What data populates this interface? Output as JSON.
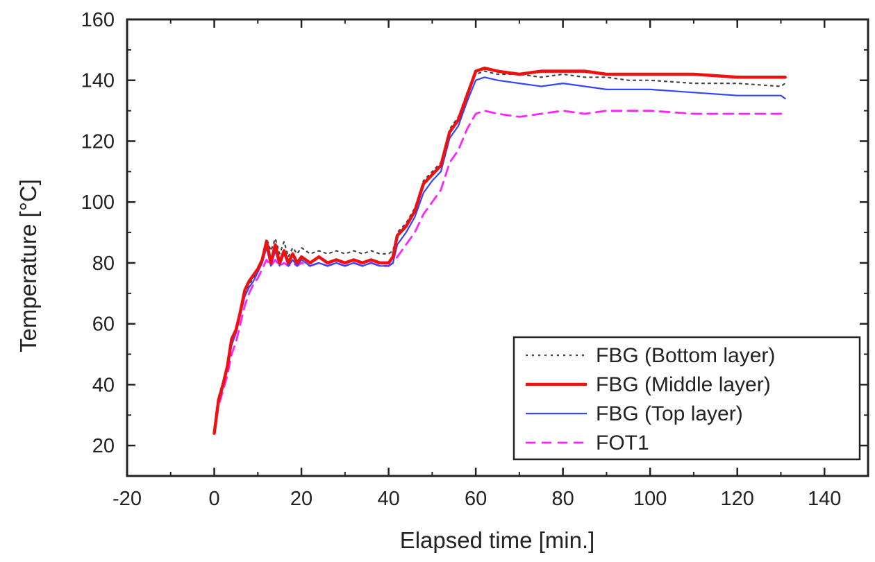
{
  "chart_data": {
    "type": "line",
    "title": "",
    "xlabel": "Elapsed time [min.]",
    "ylabel": "Temperature [°C]",
    "xlim": [
      -20,
      150
    ],
    "ylim": [
      10,
      160
    ],
    "x_ticks": [
      -20,
      0,
      20,
      40,
      60,
      80,
      100,
      120,
      140
    ],
    "y_ticks": [
      20,
      40,
      60,
      80,
      100,
      120,
      140,
      160
    ],
    "grid": false,
    "legend_position": "bottom-right",
    "series": [
      {
        "name": "FBG (Bottom layer)",
        "color": "#444444",
        "line_style": "dotted",
        "x": [
          0,
          1,
          2,
          3,
          4,
          5,
          6,
          7,
          8,
          9,
          10,
          11,
          12,
          13,
          14,
          15,
          16,
          17,
          18,
          19,
          20,
          22,
          24,
          26,
          28,
          30,
          32,
          34,
          36,
          38,
          40,
          41,
          42,
          44,
          46,
          48,
          50,
          52,
          54,
          56,
          58,
          60,
          62,
          65,
          70,
          75,
          80,
          85,
          90,
          95,
          100,
          110,
          120,
          130,
          131
        ],
        "y": [
          24,
          36,
          41,
          47,
          55,
          58,
          64,
          70,
          73,
          75,
          77,
          81,
          88,
          84,
          88,
          83,
          87,
          82,
          85,
          83,
          85,
          83,
          84,
          83,
          84,
          83,
          84,
          83,
          84,
          83,
          83,
          84,
          90,
          93,
          98,
          107,
          110,
          113,
          124,
          128,
          136,
          142,
          143,
          142,
          142,
          141,
          142,
          141,
          141,
          140,
          140,
          139,
          139,
          138,
          139
        ]
      },
      {
        "name": "FBG (Middle layer)",
        "color": "#ee1111",
        "line_style": "solid",
        "x": [
          0,
          1,
          2,
          3,
          4,
          5,
          6,
          7,
          8,
          9,
          10,
          11,
          12,
          13,
          14,
          15,
          16,
          17,
          18,
          19,
          20,
          22,
          24,
          26,
          28,
          30,
          32,
          34,
          36,
          38,
          40,
          41,
          42,
          44,
          46,
          48,
          50,
          52,
          54,
          56,
          58,
          60,
          62,
          65,
          70,
          75,
          80,
          85,
          90,
          95,
          100,
          110,
          120,
          130,
          131
        ],
        "y": [
          24,
          35,
          40,
          46,
          55,
          58,
          64,
          71,
          74,
          76,
          78,
          81,
          87,
          80,
          86,
          80,
          84,
          80,
          83,
          80,
          82,
          80,
          82,
          80,
          81,
          80,
          81,
          80,
          81,
          80,
          80,
          82,
          89,
          92,
          97,
          106,
          109,
          112,
          123,
          127,
          135,
          143,
          144,
          143,
          142,
          143,
          143,
          143,
          142,
          142,
          142,
          142,
          141,
          141,
          141
        ]
      },
      {
        "name": "FBG (Top layer)",
        "color": "#3344ff",
        "line_style": "solid",
        "x": [
          0,
          1,
          2,
          3,
          4,
          5,
          6,
          7,
          8,
          9,
          10,
          11,
          12,
          13,
          14,
          15,
          16,
          17,
          18,
          19,
          20,
          22,
          24,
          26,
          28,
          30,
          32,
          34,
          36,
          38,
          40,
          41,
          42,
          44,
          46,
          48,
          50,
          52,
          54,
          56,
          58,
          60,
          62,
          65,
          70,
          75,
          80,
          85,
          90,
          95,
          100,
          110,
          120,
          130,
          131
        ],
        "y": [
          24,
          34,
          39,
          45,
          53,
          57,
          63,
          69,
          72,
          74,
          77,
          80,
          85,
          79,
          84,
          79,
          83,
          79,
          81,
          79,
          81,
          79,
          80,
          79,
          80,
          79,
          80,
          79,
          80,
          79,
          79,
          80,
          86,
          90,
          95,
          103,
          107,
          110,
          121,
          125,
          133,
          140,
          141,
          140,
          139,
          138,
          139,
          138,
          137,
          137,
          137,
          136,
          135,
          135,
          134
        ]
      },
      {
        "name": "FOT1",
        "color": "#ff22ff",
        "line_style": "dashed",
        "x": [
          0,
          1,
          2,
          3,
          4,
          5,
          6,
          7,
          8,
          9,
          10,
          11,
          12,
          13,
          14,
          15,
          16,
          17,
          18,
          19,
          20,
          22,
          24,
          26,
          28,
          30,
          32,
          34,
          36,
          38,
          40,
          41,
          42,
          44,
          46,
          48,
          50,
          52,
          54,
          56,
          58,
          60,
          62,
          65,
          70,
          75,
          80,
          85,
          90,
          95,
          100,
          110,
          120,
          130,
          131
        ],
        "y": [
          24,
          33,
          38,
          43,
          50,
          54,
          60,
          66,
          70,
          73,
          75,
          78,
          81,
          79,
          81,
          79,
          80,
          79,
          80,
          79,
          80,
          79,
          80,
          79,
          80,
          79,
          80,
          79,
          80,
          79,
          79,
          80,
          82,
          86,
          90,
          96,
          100,
          104,
          113,
          117,
          124,
          129,
          130,
          129,
          128,
          129,
          130,
          129,
          130,
          130,
          130,
          129,
          129,
          129,
          130
        ]
      }
    ]
  }
}
